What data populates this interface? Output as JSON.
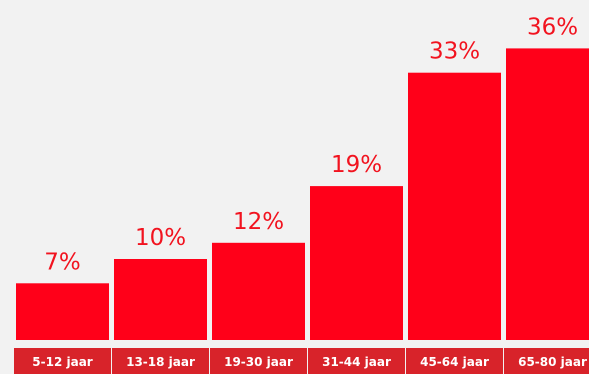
{
  "chart_data": {
    "type": "bar",
    "categories": [
      "5-12 jaar",
      "13-18 jaar",
      "19-30 jaar",
      "31-44 jaar",
      "45-64 jaar",
      "65-80 jaar"
    ],
    "values": [
      7,
      10,
      12,
      19,
      33,
      36
    ],
    "value_labels": [
      "7%",
      "10%",
      "12%",
      "19%",
      "33%",
      "36%"
    ],
    "title": "",
    "xlabel": "",
    "ylabel": "",
    "ylim": [
      0,
      40
    ],
    "grid": false,
    "legend": "none"
  },
  "colors": {
    "background": "#f2f2f2",
    "bar": "#ff0019",
    "value_label": "#f2131f",
    "category_box": "#d8232a",
    "category_text": "#ffffff"
  }
}
